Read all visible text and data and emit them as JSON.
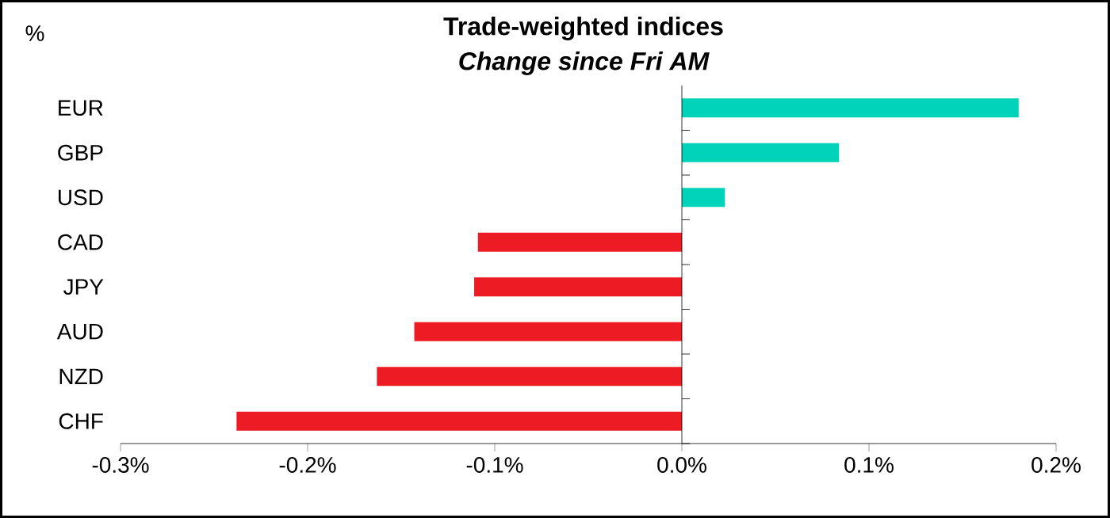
{
  "chart_data": {
    "type": "bar",
    "orientation": "horizontal",
    "title": "Trade-weighted indices",
    "subtitle": "Change since Fri AM",
    "ylabel": "%",
    "categories": [
      "EUR",
      "GBP",
      "USD",
      "CAD",
      "JPY",
      "AUD",
      "NZD",
      "CHF"
    ],
    "values": [
      0.18,
      0.084,
      0.023,
      -0.109,
      -0.111,
      -0.143,
      -0.163,
      -0.238
    ],
    "colors": [
      "#00d3b8",
      "#00d3b8",
      "#00d3b8",
      "#ed1c24",
      "#ed1c24",
      "#ed1c24",
      "#ed1c24",
      "#ed1c24"
    ],
    "xlim": [
      -0.3,
      0.2
    ],
    "xticks": [
      {
        "value": -0.3,
        "label": "-0.3%"
      },
      {
        "value": -0.2,
        "label": "-0.2%"
      },
      {
        "value": -0.1,
        "label": "-0.1%"
      },
      {
        "value": 0,
        "label": "0.0%"
      },
      {
        "value": 0.1,
        "label": "0.1%"
      },
      {
        "value": 0.2,
        "label": "0.2%"
      }
    ],
    "tick_labels": "xy"
  }
}
